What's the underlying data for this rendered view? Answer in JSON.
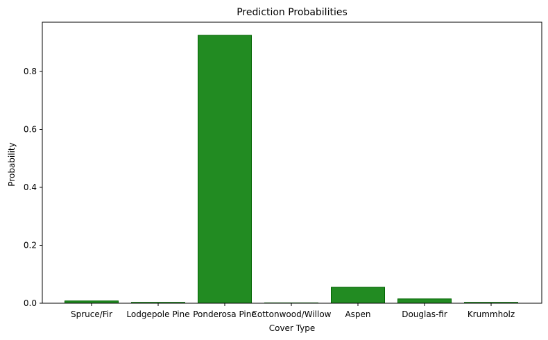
{
  "chart_data": {
    "type": "bar",
    "title": "Prediction Probabilities",
    "xlabel": "Cover Type",
    "ylabel": "Probability",
    "categories": [
      "Spruce/Fir",
      "Lodgepole Pine",
      "Ponderosa Pine",
      "Cottonwood/Willow",
      "Aspen",
      "Douglas-fir",
      "Krummholz"
    ],
    "values": [
      0.008,
      0.003,
      0.925,
      0.001,
      0.055,
      0.015,
      0.003
    ],
    "ylim": [
      0,
      0.97
    ],
    "yticks": [
      0.0,
      0.2,
      0.4,
      0.6,
      0.8
    ],
    "ytick_labels": [
      "0.0",
      "0.2",
      "0.4",
      "0.6",
      "0.8"
    ],
    "grid": false,
    "bar_color": "#228b22",
    "bar_edge_color": "#006400"
  }
}
